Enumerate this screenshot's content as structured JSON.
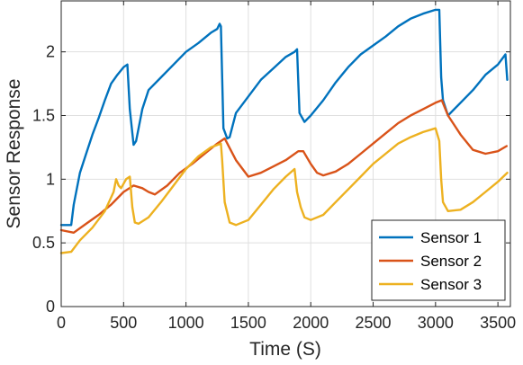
{
  "chart_data": {
    "type": "line",
    "title": "",
    "xlabel": "Time (S)",
    "ylabel": "Sensor Response",
    "xlim": [
      0,
      3600
    ],
    "ylim": [
      0,
      2.4
    ],
    "xticks": [
      0,
      500,
      1000,
      1500,
      2000,
      2500,
      3000,
      3500
    ],
    "yticks": [
      0,
      0.5,
      1,
      1.5,
      2
    ],
    "xtick_labels": [
      "0",
      "500",
      "1000",
      "1500",
      "2000",
      "2500",
      "3000",
      "3500"
    ],
    "ytick_labels": [
      "0",
      "0.5",
      "1",
      "1.5",
      "2"
    ],
    "grid": true,
    "legend_position": "bottom-right",
    "series": [
      {
        "name": "Sensor 1",
        "color": "#0072BD",
        "x": [
          0,
          80,
          100,
          150,
          200,
          250,
          300,
          350,
          400,
          450,
          500,
          530,
          550,
          580,
          600,
          650,
          700,
          800,
          900,
          1000,
          1100,
          1200,
          1250,
          1270,
          1280,
          1300,
          1330,
          1350,
          1400,
          1500,
          1600,
          1700,
          1800,
          1870,
          1890,
          1910,
          1950,
          2000,
          2100,
          2200,
          2300,
          2400,
          2500,
          2600,
          2700,
          2800,
          2900,
          3000,
          3030,
          3045,
          3060,
          3100,
          3200,
          3300,
          3400,
          3500,
          3560,
          3575
        ],
        "y": [
          0.64,
          0.64,
          0.8,
          1.05,
          1.2,
          1.35,
          1.48,
          1.62,
          1.75,
          1.82,
          1.88,
          1.9,
          1.55,
          1.27,
          1.3,
          1.55,
          1.7,
          1.8,
          1.9,
          2.0,
          2.07,
          2.15,
          2.18,
          2.22,
          2.2,
          1.4,
          1.32,
          1.33,
          1.52,
          1.65,
          1.78,
          1.87,
          1.96,
          2.0,
          2.02,
          1.52,
          1.45,
          1.5,
          1.62,
          1.76,
          1.88,
          1.98,
          2.05,
          2.12,
          2.2,
          2.26,
          2.3,
          2.33,
          2.33,
          1.8,
          1.62,
          1.5,
          1.6,
          1.7,
          1.82,
          1.9,
          1.98,
          1.78
        ]
      },
      {
        "name": "Sensor 2",
        "color": "#D95319",
        "x": [
          0,
          100,
          200,
          300,
          400,
          500,
          580,
          650,
          700,
          750,
          850,
          950,
          1050,
          1150,
          1250,
          1310,
          1400,
          1500,
          1600,
          1700,
          1800,
          1900,
          1940,
          2000,
          2050,
          2100,
          2200,
          2300,
          2400,
          2500,
          2600,
          2700,
          2800,
          2900,
          3000,
          3050,
          3100,
          3200,
          3300,
          3400,
          3500,
          3570
        ],
        "y": [
          0.6,
          0.58,
          0.65,
          0.72,
          0.8,
          0.9,
          0.95,
          0.93,
          0.9,
          0.88,
          0.95,
          1.05,
          1.12,
          1.2,
          1.28,
          1.32,
          1.15,
          1.02,
          1.05,
          1.1,
          1.15,
          1.22,
          1.22,
          1.12,
          1.05,
          1.03,
          1.06,
          1.12,
          1.2,
          1.28,
          1.36,
          1.44,
          1.5,
          1.55,
          1.6,
          1.62,
          1.5,
          1.35,
          1.23,
          1.2,
          1.22,
          1.26
        ]
      },
      {
        "name": "Sensor 3",
        "color": "#EDB120",
        "x": [
          0,
          80,
          150,
          250,
          350,
          420,
          440,
          460,
          480,
          520,
          550,
          570,
          590,
          620,
          700,
          800,
          900,
          1000,
          1100,
          1200,
          1280,
          1290,
          1310,
          1350,
          1400,
          1500,
          1600,
          1700,
          1800,
          1870,
          1890,
          1920,
          1950,
          2000,
          2100,
          2200,
          2300,
          2400,
          2500,
          2600,
          2700,
          2800,
          2900,
          3000,
          3030,
          3045,
          3060,
          3100,
          3200,
          3300,
          3400,
          3500,
          3575
        ],
        "y": [
          0.42,
          0.43,
          0.52,
          0.62,
          0.75,
          0.9,
          1.0,
          0.95,
          0.93,
          1.0,
          1.02,
          0.78,
          0.66,
          0.65,
          0.7,
          0.82,
          0.95,
          1.08,
          1.18,
          1.25,
          1.28,
          1.15,
          0.82,
          0.66,
          0.64,
          0.68,
          0.8,
          0.92,
          1.02,
          1.08,
          0.9,
          0.78,
          0.7,
          0.68,
          0.72,
          0.82,
          0.92,
          1.02,
          1.12,
          1.2,
          1.28,
          1.33,
          1.37,
          1.4,
          1.3,
          1.0,
          0.82,
          0.75,
          0.76,
          0.82,
          0.9,
          0.98,
          1.05
        ]
      }
    ]
  }
}
